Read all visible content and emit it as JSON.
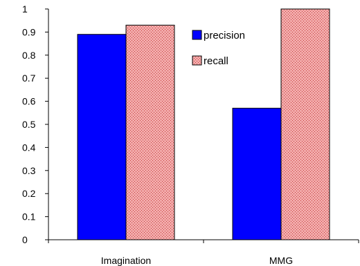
{
  "chart_data": {
    "type": "bar",
    "categories": [
      "Imagination",
      "MMG"
    ],
    "series": [
      {
        "name": "precision",
        "values": [
          0.89,
          0.57
        ]
      },
      {
        "name": "recall",
        "values": [
          0.93,
          1.0
        ]
      }
    ],
    "ylim": [
      0,
      1
    ],
    "yticks": [
      "0",
      "0.1",
      "0.2",
      "0.3",
      "0.4",
      "0.5",
      "0.6",
      "0.7",
      "0.8",
      "0.9",
      "1"
    ],
    "grid": false,
    "legend_position": "top-center",
    "colors": {
      "precision": "#0000ff",
      "recall_fill": "#f2aaaa",
      "recall_pattern": "#c53a3a",
      "axis": "#000000"
    }
  }
}
